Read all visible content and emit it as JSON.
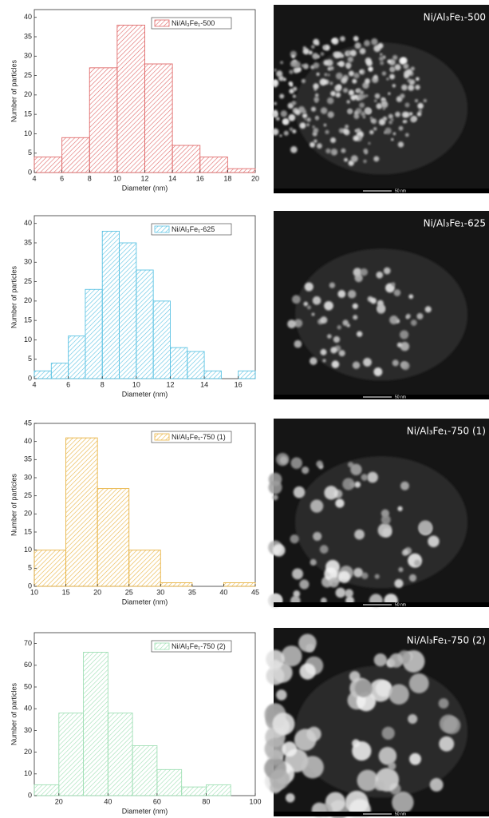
{
  "chart_data": [
    {
      "type": "histogram",
      "name": "Ni/Al₃Fe₁-500",
      "color": "#e06a6a",
      "bins": [
        4,
        6,
        8,
        10,
        12,
        14,
        16,
        18,
        20
      ],
      "values": [
        4,
        9,
        27,
        38,
        28,
        7,
        4,
        1
      ],
      "xlim": [
        4,
        20
      ],
      "xticks": [
        4,
        6,
        8,
        10,
        12,
        14,
        16,
        18,
        20
      ],
      "ylim": [
        0,
        42
      ],
      "yticks": [
        0,
        5,
        10,
        15,
        20,
        25,
        30,
        35,
        40
      ],
      "xlabel": "Diameter (nm)",
      "ylabel": "Number of particles",
      "legend": "upper right"
    },
    {
      "type": "histogram",
      "name": "Ni/Al₃Fe₁-625",
      "color": "#5cc3e3",
      "bins": [
        4,
        5,
        6,
        7,
        8,
        9,
        10,
        11,
        12,
        13,
        14,
        15,
        16,
        17
      ],
      "values": [
        2,
        4,
        11,
        23,
        38,
        35,
        28,
        20,
        8,
        7,
        2,
        0,
        2
      ],
      "xlim": [
        4,
        17
      ],
      "xticks": [
        4,
        6,
        8,
        10,
        12,
        14,
        16
      ],
      "ylim": [
        0,
        42
      ],
      "yticks": [
        0,
        5,
        10,
        15,
        20,
        25,
        30,
        35,
        40
      ],
      "xlabel": "Diameter (nm)",
      "ylabel": "Number of particles",
      "legend": "upper right"
    },
    {
      "type": "histogram",
      "name": "Ni/Al₃Fe₁-750 (1)",
      "color": "#e8b342",
      "bins": [
        10,
        15,
        20,
        25,
        30,
        35,
        40,
        45
      ],
      "values": [
        10,
        41,
        27,
        10,
        1,
        0,
        1
      ],
      "xlim": [
        10,
        45
      ],
      "xticks": [
        10,
        15,
        20,
        25,
        30,
        35,
        40,
        45
      ],
      "ylim": [
        0,
        45
      ],
      "yticks": [
        0,
        5,
        10,
        15,
        20,
        25,
        30,
        35,
        40,
        45
      ],
      "xlabel": "Diameter (nm)",
      "ylabel": "Number of particles",
      "legend": "upper right"
    },
    {
      "type": "histogram",
      "name": "Ni/Al₃Fe₁-750 (2)",
      "color": "#9fdfb4",
      "bins": [
        10,
        20,
        30,
        40,
        50,
        60,
        70,
        80,
        90
      ],
      "values": [
        5,
        38,
        66,
        38,
        23,
        12,
        4,
        5
      ],
      "xlim": [
        10,
        100
      ],
      "xticks": [
        20,
        40,
        60,
        80,
        100
      ],
      "ylim": [
        0,
        75
      ],
      "yticks": [
        0,
        10,
        20,
        30,
        40,
        50,
        60,
        70
      ],
      "xlabel": "Diameter (nm)",
      "ylabel": "Number of particles",
      "legend": "upper right"
    }
  ],
  "images": [
    {
      "label": "Ni/Al₃Fe₁-500",
      "scale": "50 nm"
    },
    {
      "label": "Ni/Al₃Fe₁-625",
      "scale": "50 nm"
    },
    {
      "label": "Ni/Al₃Fe₁-750 (1)",
      "scale": "50 nm"
    },
    {
      "label": "Ni/Al₃Fe₁-750 (2)",
      "scale": "50 nm"
    }
  ]
}
